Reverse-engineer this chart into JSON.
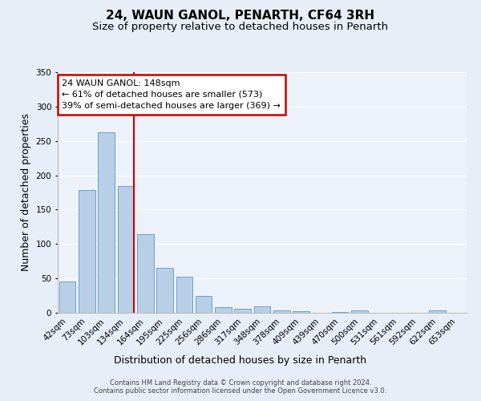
{
  "title": "24, WAUN GANOL, PENARTH, CF64 3RH",
  "subtitle": "Size of property relative to detached houses in Penarth",
  "xlabel": "Distribution of detached houses by size in Penarth",
  "ylabel": "Number of detached properties",
  "bar_labels": [
    "42sqm",
    "73sqm",
    "103sqm",
    "134sqm",
    "164sqm",
    "195sqm",
    "225sqm",
    "256sqm",
    "286sqm",
    "317sqm",
    "348sqm",
    "378sqm",
    "409sqm",
    "439sqm",
    "470sqm",
    "500sqm",
    "531sqm",
    "561sqm",
    "592sqm",
    "622sqm",
    "653sqm"
  ],
  "bar_values": [
    45,
    178,
    262,
    184,
    114,
    65,
    52,
    25,
    8,
    6,
    9,
    4,
    2,
    0,
    1,
    3,
    0,
    0,
    0,
    3,
    0
  ],
  "bar_color": "#b8cfe8",
  "bar_edge_color": "#6a9fcf",
  "ylim": [
    0,
    350
  ],
  "yticks": [
    0,
    50,
    100,
    150,
    200,
    250,
    300,
    350
  ],
  "vline_color": "#cc0000",
  "annotation_title": "24 WAUN GANOL: 148sqm",
  "annotation_line1": "← 61% of detached houses are smaller (573)",
  "annotation_line2": "39% of semi-detached houses are larger (369) →",
  "annotation_box_color": "#cc0000",
  "bg_color": "#e8eef8",
  "plot_bg_color": "#edf2fa",
  "footer_line1": "Contains HM Land Registry data © Crown copyright and database right 2024.",
  "footer_line2": "Contains public sector information licensed under the Open Government Licence v3.0.",
  "title_fontsize": 11,
  "subtitle_fontsize": 9.5,
  "axis_label_fontsize": 9,
  "tick_fontsize": 7.5,
  "annotation_fontsize": 8,
  "footer_fontsize": 6
}
